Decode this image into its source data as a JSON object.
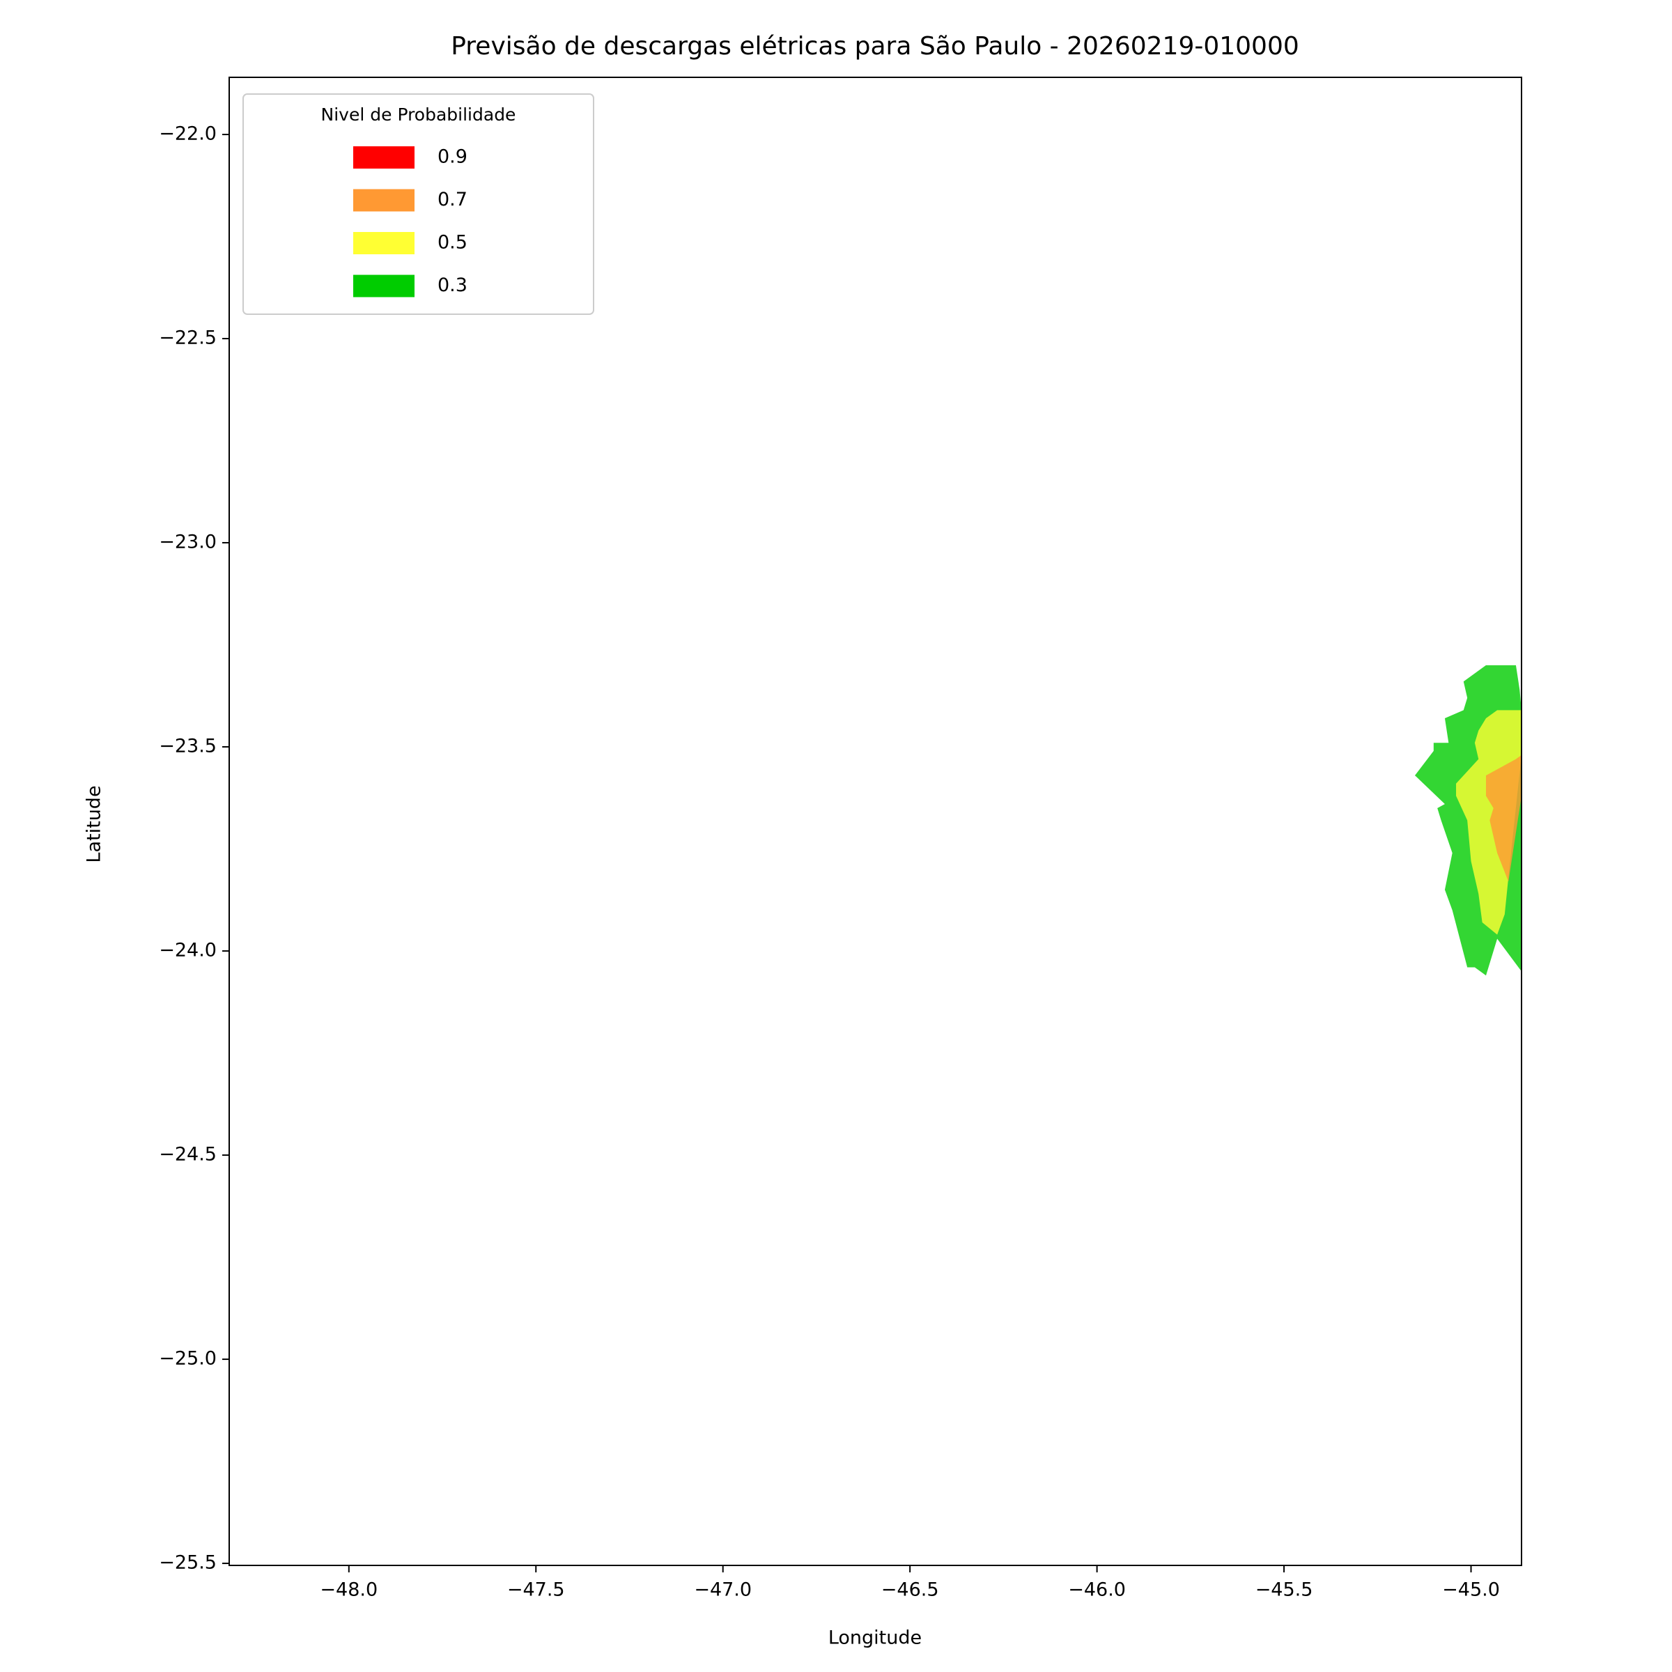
{
  "chart_data": {
    "type": "contour",
    "title": "Previsão de descargas elétricas para São Paulo - 20260219-010000",
    "x_label": "Longitude",
    "y_label": "Latitude",
    "legend_title": "Nivel de Probabilidade",
    "legend": "upper left",
    "fill_alpha": 0.8,
    "xlim": [
      -48.32,
      -44.865
    ],
    "ylim": [
      -25.505,
      -21.86
    ],
    "xticks": [
      {
        "value": -48.0,
        "label": "−48.0"
      },
      {
        "value": -47.5,
        "label": "−47.5"
      },
      {
        "value": -47.0,
        "label": "−47.0"
      },
      {
        "value": -46.5,
        "label": "−46.5"
      },
      {
        "value": -46.0,
        "label": "−46.0"
      },
      {
        "value": -45.5,
        "label": "−45.5"
      },
      {
        "value": -45.0,
        "label": "−45.0"
      }
    ],
    "yticks": [
      {
        "value": -22.0,
        "label": "−22.0"
      },
      {
        "value": -22.5,
        "label": "−22.5"
      },
      {
        "value": -23.0,
        "label": "−23.0"
      },
      {
        "value": -23.5,
        "label": "−23.5"
      },
      {
        "value": -24.0,
        "label": "−24.0"
      },
      {
        "value": -24.5,
        "label": "−24.5"
      },
      {
        "value": -25.0,
        "label": "−25.0"
      },
      {
        "value": -25.5,
        "label": "−25.5"
      }
    ],
    "series": [
      {
        "name": "0.9",
        "color": "#ff0000",
        "lon": [],
        "lat": []
      },
      {
        "name": "0.7",
        "color": "#ff9933",
        "lon": [
          -44.96,
          -44.88,
          -44.865,
          -44.865,
          -44.9,
          -44.93,
          -44.95,
          -44.94,
          -44.96
        ],
        "lat": [
          -23.57,
          -23.53,
          -23.52,
          -23.62,
          -23.83,
          -23.76,
          -23.68,
          -23.65,
          -23.62
        ]
      },
      {
        "name": "0.5",
        "color": "#ffff33",
        "lon": [
          -44.98,
          -44.96,
          -44.93,
          -44.865,
          -44.865,
          -44.9,
          -44.91,
          -44.93,
          -44.97,
          -44.98,
          -45.0,
          -45.01,
          -45.04,
          -45.04,
          -45.01,
          -44.98,
          -44.99
        ],
        "lat": [
          -23.46,
          -23.43,
          -23.41,
          -23.41,
          -23.52,
          -23.82,
          -23.91,
          -23.96,
          -23.93,
          -23.86,
          -23.78,
          -23.68,
          -23.62,
          -23.59,
          -23.56,
          -23.53,
          -23.49
        ]
      },
      {
        "name": "0.3",
        "color": "#00cc00",
        "lon": [
          -45.02,
          -44.96,
          -44.88,
          -44.87,
          -44.865,
          -44.865,
          -44.93,
          -44.96,
          -44.99,
          -45.01,
          -45.05,
          -45.07,
          -45.05,
          -45.08,
          -45.09,
          -45.07,
          -45.15,
          -45.1,
          -45.1,
          -45.06,
          -45.07,
          -45.02,
          -45.01
        ],
        "lat": [
          -23.34,
          -23.3,
          -23.3,
          -23.36,
          -23.41,
          -24.05,
          -23.97,
          -24.06,
          -24.04,
          -24.04,
          -23.9,
          -23.85,
          -23.76,
          -23.68,
          -23.65,
          -23.64,
          -23.57,
          -23.51,
          -23.49,
          -23.49,
          -23.43,
          -23.41,
          -23.38
        ]
      }
    ]
  }
}
